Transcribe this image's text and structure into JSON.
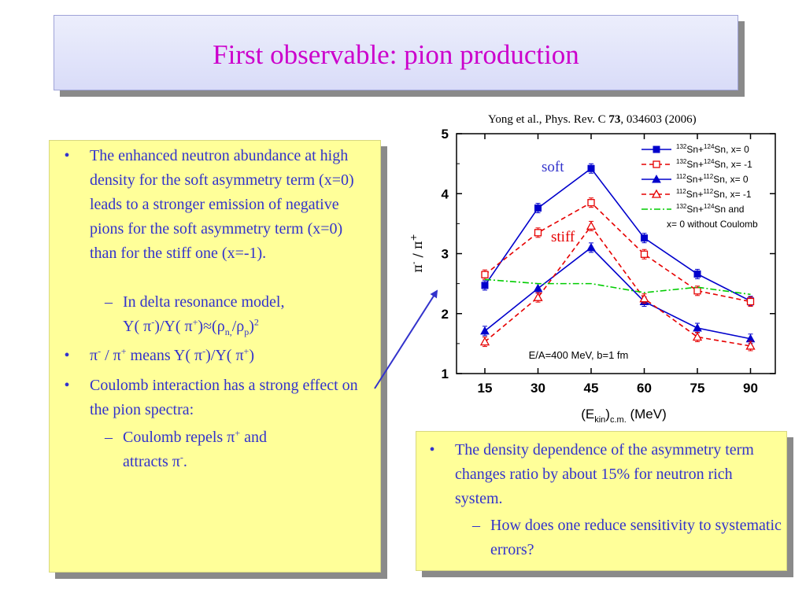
{
  "slide": {
    "title": "First observable: pion production",
    "reference": {
      "authors": "Yong et al., Phys. Rev. C ",
      "volume": "73",
      "rest": ", 034603 (2006)"
    },
    "left_bullets": {
      "b1": "The enhanced neutron abundance at high density for the soft asymmetry term (x=0) leads to a stronger emission of negative pions for the soft asymmetry term (x=0) than for the stiff one (x=-1).",
      "b1_sub_line1": "In delta resonance model,",
      "b2_tail": " means Y(",
      "b3": "Coulomb interaction has a strong effect on the pion spectra:",
      "b3_sub_a": "Coulomb repels ",
      "b3_sub_b": " and",
      "b3_sub_c": "attracts "
    },
    "right_bullets": {
      "b1": "The density dependence of the asymmetry term changes ratio by about 15% for neutron rich system.",
      "b1_sub": "How does one reduce sensitivity to systematic errors?"
    }
  },
  "chart_data": {
    "type": "line",
    "x": [
      15,
      30,
      45,
      60,
      75,
      90
    ],
    "xlabel_main": "(E",
    "xlabel_sub1": "kin",
    "xlabel_mid": ")",
    "xlabel_sub2": "c.m.",
    "xlabel_end": " (MeV)",
    "xlim": [
      7,
      97
    ],
    "ylim": [
      1,
      5
    ],
    "xticks": [
      "15",
      "30",
      "45",
      "60",
      "75",
      "90"
    ],
    "yticks": [
      "1",
      "2",
      "3",
      "4",
      "5"
    ],
    "annotation_soft": "soft",
    "annotation_stiff": "stiff",
    "annotation_condition": "E/A=400 MeV, b=1 fm",
    "legend_position": "top-right",
    "colors": {
      "blue": "#0000cc",
      "red": "#e60000",
      "green": "#00cc00",
      "accent": "#3333cc",
      "title": "#cc00cc"
    },
    "series": [
      {
        "legend": [
          "132",
          "Sn+",
          "124",
          "Sn, x= 0"
        ],
        "values": [
          2.47,
          3.76,
          4.42,
          3.26,
          2.66,
          2.21
        ],
        "color": "#0000cc",
        "dash": "solid",
        "marker": "square-filled"
      },
      {
        "legend": [
          "132",
          "Sn+",
          "124",
          "Sn, x= -1"
        ],
        "values": [
          2.65,
          3.35,
          3.85,
          2.99,
          2.38,
          2.2
        ],
        "color": "#e60000",
        "dash": "dashed",
        "marker": "square-open"
      },
      {
        "legend": [
          "112",
          "Sn+",
          "112",
          "Sn, x= 0"
        ],
        "values": [
          1.71,
          2.42,
          3.1,
          2.2,
          1.76,
          1.58
        ],
        "color": "#0000cc",
        "dash": "solid",
        "marker": "triangle-filled"
      },
      {
        "legend": [
          "112",
          "Sn+",
          "112",
          "Sn, x= -1"
        ],
        "values": [
          1.53,
          2.27,
          3.46,
          2.25,
          1.61,
          1.46
        ],
        "color": "#e60000",
        "dash": "dashed",
        "marker": "triangle-open"
      },
      {
        "legend": [
          "132",
          "Sn+",
          "124",
          "Sn and"
        ],
        "legend_line2": "x= 0 without Coulomb",
        "values": [
          2.57,
          2.5,
          2.5,
          2.35,
          2.44,
          2.32
        ],
        "color": "#00cc00",
        "dash": "dashdot",
        "marker": "none"
      }
    ]
  }
}
